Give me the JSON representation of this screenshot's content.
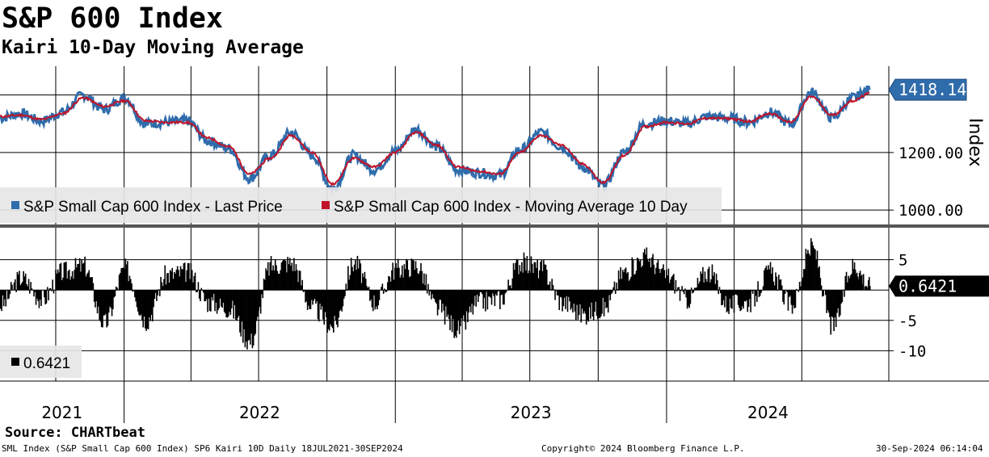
{
  "title": "S&P 600 Index",
  "subtitle": "Kairi 10-Day Moving Average",
  "source": "Source: CHARTbeat",
  "footer": {
    "left": "SML Index (S&P Small Cap 600 Index) SP6 Kairi 10D  Daily 18JUL2021-30SEP2024",
    "center": "Copyright© 2024 Bloomberg Finance L.P.",
    "right": "30-Sep-2024 06:14:04"
  },
  "chart_data": [
    {
      "type": "line",
      "panel": "price",
      "ylabel": "Index",
      "ylim": [
        950,
        1500
      ],
      "y_ticks": [
        1000,
        1200
      ],
      "y_tick_labels": [
        "1000.00",
        "1200.00"
      ],
      "x_years": [
        "2021",
        "2022",
        "2023",
        "2024"
      ],
      "date_range": [
        "2021-07-18",
        "2024-09-30"
      ],
      "legend_position": "bottom-left",
      "last_value_label": "1418.14",
      "colors": {
        "price": "#2f6cab",
        "ma": "#c0142a",
        "label_bg": "#2f6cab"
      },
      "series": [
        {
          "name": "S&P Small Cap 600 Index - Last Price",
          "x": [
            "2021-07-18",
            "2021-08-15",
            "2021-09-12",
            "2021-10-10",
            "2021-11-07",
            "2021-12-05",
            "2022-01-02",
            "2022-01-30",
            "2022-02-27",
            "2022-03-27",
            "2022-04-24",
            "2022-05-22",
            "2022-06-19",
            "2022-07-17",
            "2022-08-14",
            "2022-09-11",
            "2022-10-09",
            "2022-11-06",
            "2022-12-04",
            "2023-01-01",
            "2023-01-29",
            "2023-02-26",
            "2023-03-26",
            "2023-04-23",
            "2023-05-21",
            "2023-06-18",
            "2023-07-16",
            "2023-08-13",
            "2023-09-10",
            "2023-10-08",
            "2023-11-05",
            "2023-12-03",
            "2023-12-31",
            "2024-01-28",
            "2024-02-25",
            "2024-03-24",
            "2024-04-21",
            "2024-05-19",
            "2024-06-16",
            "2024-07-14",
            "2024-08-11",
            "2024-09-08",
            "2024-09-30"
          ],
          "values": [
            1320,
            1335,
            1310,
            1340,
            1400,
            1350,
            1390,
            1300,
            1305,
            1310,
            1240,
            1215,
            1110,
            1190,
            1270,
            1190,
            1075,
            1190,
            1140,
            1205,
            1280,
            1220,
            1140,
            1130,
            1120,
            1210,
            1270,
            1220,
            1150,
            1085,
            1200,
            1300,
            1310,
            1300,
            1325,
            1320,
            1305,
            1340,
            1300,
            1410,
            1320,
            1390,
            1418.14
          ]
        },
        {
          "name": "S&P Small Cap 600 Index - Moving Average 10 Day",
          "x": [
            "2021-07-18",
            "2021-08-15",
            "2021-09-12",
            "2021-10-10",
            "2021-11-07",
            "2021-12-05",
            "2022-01-02",
            "2022-01-30",
            "2022-02-27",
            "2022-03-27",
            "2022-04-24",
            "2022-05-22",
            "2022-06-19",
            "2022-07-17",
            "2022-08-14",
            "2022-09-11",
            "2022-10-09",
            "2022-11-06",
            "2022-12-04",
            "2023-01-01",
            "2023-01-29",
            "2023-02-26",
            "2023-03-26",
            "2023-04-23",
            "2023-05-21",
            "2023-06-18",
            "2023-07-16",
            "2023-08-13",
            "2023-09-10",
            "2023-10-08",
            "2023-11-05",
            "2023-12-03",
            "2023-12-31",
            "2024-01-28",
            "2024-02-25",
            "2024-03-24",
            "2024-04-21",
            "2024-05-19",
            "2024-06-16",
            "2024-07-14",
            "2024-08-11",
            "2024-09-08",
            "2024-09-30"
          ],
          "values": [
            1325,
            1330,
            1315,
            1335,
            1390,
            1360,
            1380,
            1310,
            1305,
            1305,
            1250,
            1220,
            1125,
            1180,
            1260,
            1200,
            1090,
            1180,
            1150,
            1200,
            1270,
            1225,
            1150,
            1135,
            1125,
            1200,
            1260,
            1225,
            1160,
            1095,
            1190,
            1290,
            1305,
            1300,
            1320,
            1318,
            1308,
            1335,
            1305,
            1395,
            1330,
            1380,
            1405
          ]
        }
      ]
    },
    {
      "type": "bar",
      "panel": "kairi",
      "ylim": [
        -15,
        10
      ],
      "y_ticks": [
        5,
        -5,
        -10
      ],
      "y_tick_labels": [
        "5",
        "-5",
        "-10"
      ],
      "legend_position": "bottom-left",
      "last_value_label": "0.6421",
      "colors": {
        "bar": "#000000",
        "label_bg": "#000000"
      },
      "series": [
        {
          "name": "0.6421",
          "x": [
            "2021-07-18",
            "2021-08-15",
            "2021-09-12",
            "2021-10-10",
            "2021-11-07",
            "2021-12-05",
            "2022-01-02",
            "2022-01-30",
            "2022-02-27",
            "2022-03-27",
            "2022-04-24",
            "2022-05-22",
            "2022-06-19",
            "2022-07-17",
            "2022-08-14",
            "2022-09-11",
            "2022-10-09",
            "2022-11-06",
            "2022-12-04",
            "2023-01-01",
            "2023-01-29",
            "2023-02-26",
            "2023-03-26",
            "2023-04-23",
            "2023-05-21",
            "2023-06-18",
            "2023-07-16",
            "2023-08-13",
            "2023-09-10",
            "2023-10-08",
            "2023-11-05",
            "2023-12-03",
            "2023-12-31",
            "2024-01-28",
            "2024-02-25",
            "2024-03-24",
            "2024-04-21",
            "2024-05-19",
            "2024-06-16",
            "2024-07-14",
            "2024-08-11",
            "2024-09-08",
            "2024-09-30"
          ],
          "values": [
            -2.5,
            2,
            -1.5,
            3,
            4,
            -5.5,
            3.5,
            -5,
            2.5,
            3,
            -2,
            -3,
            -8.5,
            4,
            4.5,
            -3,
            -6,
            4.5,
            -2,
            3.5,
            4,
            -3,
            -6.5,
            -2,
            -1.5,
            4.5,
            3.5,
            -2,
            -4,
            -3,
            3,
            5.5,
            2.5,
            -1.5,
            3,
            -2.5,
            -2,
            3,
            -2.5,
            7,
            -6,
            4,
            0.6421
          ]
        }
      ]
    }
  ]
}
